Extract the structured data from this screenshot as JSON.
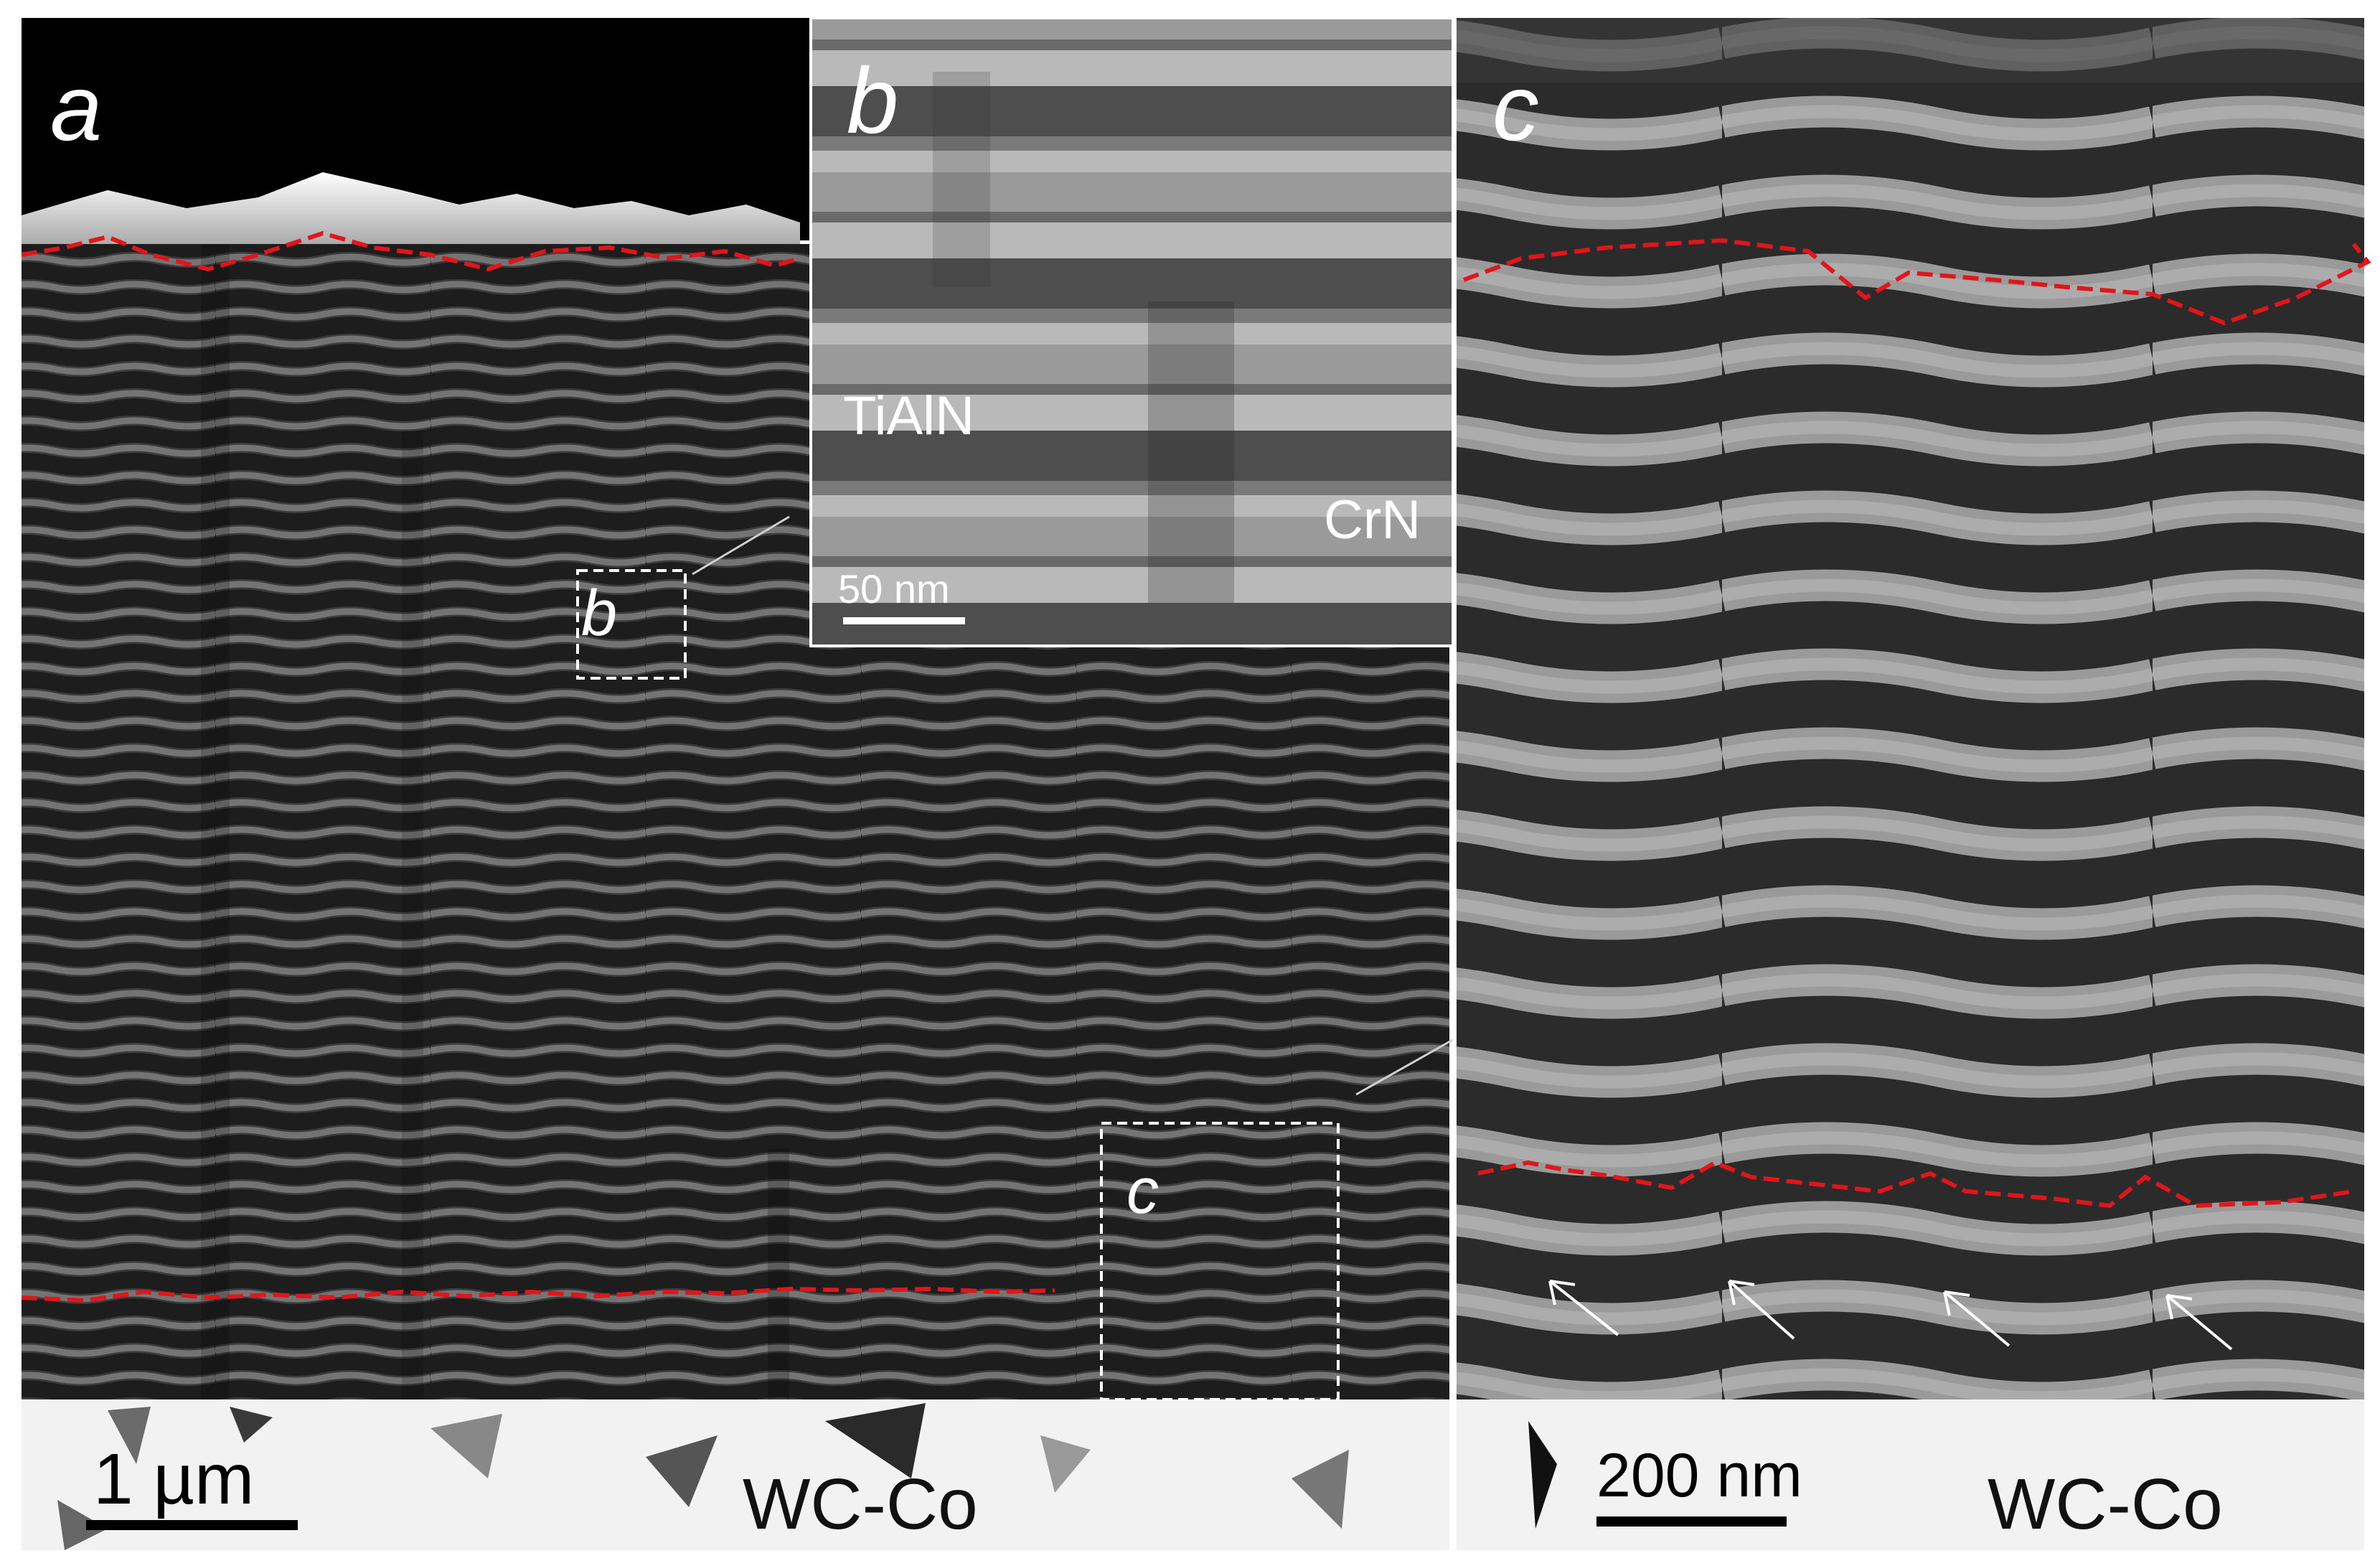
{
  "figure": {
    "panel_a": {
      "letter": "a",
      "scale_bar": "1 µm",
      "substrate": "WC-Co",
      "box_b_label": "b",
      "box_c_label": "c"
    },
    "panel_b": {
      "letter": "b",
      "layer_label_1": "TiAlN",
      "layer_label_2": "CrN",
      "scale_bar": "50 nm"
    },
    "panel_c": {
      "letter": "c",
      "scale_bar": "200 nm",
      "substrate": "WC-Co"
    },
    "colors": {
      "dashed_interface": "#e0161b",
      "annotation": "#ffffff",
      "substrate_text": "#111111"
    }
  }
}
